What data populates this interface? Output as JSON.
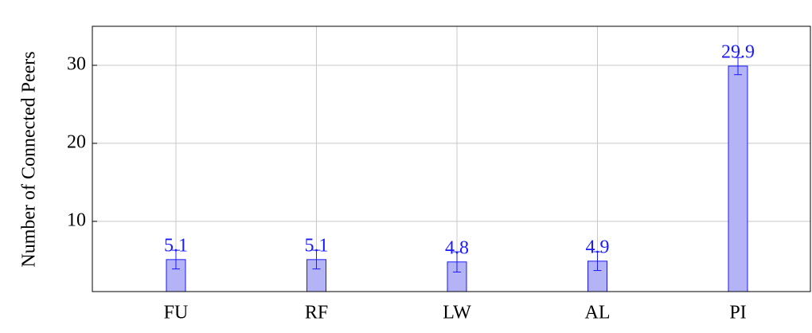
{
  "chart_data": {
    "type": "bar",
    "ylabel": "Number of Connected Peers",
    "categories": [
      "FU",
      "RF",
      "LW",
      "AL",
      "PI"
    ],
    "values": [
      5.1,
      5.1,
      4.8,
      4.9,
      29.9
    ],
    "errors": [
      1.2,
      1.2,
      1.3,
      1.2,
      1.1
    ],
    "color": "#b3b3f5",
    "edge_color": "#1a1aff",
    "ylim": [
      1,
      35
    ],
    "yticks": [
      10,
      20,
      30
    ],
    "grid": true
  }
}
